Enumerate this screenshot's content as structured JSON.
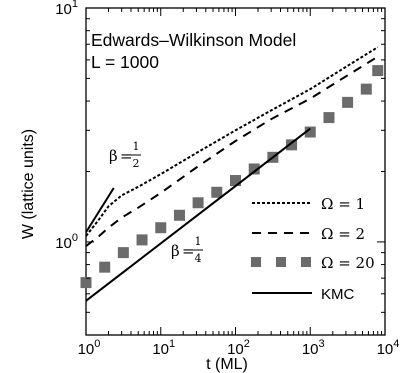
{
  "chart_data": {
    "type": "line",
    "xscale": "log",
    "yscale": "log",
    "xlim": [
      1,
      10000
    ],
    "ylim": [
      0.4,
      10
    ],
    "title": "Edwards–Wilkinson Model",
    "subtitle": "L = 1000",
    "xlabel": "t (ML)",
    "ylabel": "W (lattice units)",
    "grid": false,
    "legend_position": "right",
    "x_ticks": [
      {
        "value": 1,
        "base": "10",
        "exp": "0"
      },
      {
        "value": 10,
        "base": "10",
        "exp": "1"
      },
      {
        "value": 100,
        "base": "10",
        "exp": "2"
      },
      {
        "value": 1000,
        "base": "10",
        "exp": "3"
      },
      {
        "value": 10000,
        "base": "10",
        "exp": "4"
      }
    ],
    "y_ticks": [
      {
        "value": 1,
        "base": "10",
        "exp": "0"
      },
      {
        "value": 10,
        "base": "10",
        "exp": "1"
      }
    ],
    "series": [
      {
        "name": "Ω = 1",
        "style": "dotted",
        "x": [
          1,
          1.5,
          2,
          3,
          5,
          10,
          30,
          100,
          300,
          1000,
          3000,
          8000
        ],
        "y": [
          1.06,
          1.25,
          1.42,
          1.58,
          1.72,
          1.95,
          2.4,
          3.0,
          3.65,
          4.5,
          5.6,
          6.8
        ]
      },
      {
        "name": "Ω = 2",
        "style": "dashed",
        "x": [
          1,
          1.5,
          2,
          3,
          5,
          10,
          30,
          100,
          300,
          1000,
          3000,
          8000
        ],
        "y": [
          0.96,
          1.06,
          1.15,
          1.27,
          1.4,
          1.62,
          2.08,
          2.7,
          3.35,
          4.1,
          5.1,
          6.2
        ]
      },
      {
        "name": "Ω = 20",
        "style": "squares",
        "x": [
          1,
          1.78,
          3.16,
          5.62,
          10,
          17.8,
          31.6,
          56.2,
          100,
          178,
          316,
          562,
          1000,
          1780,
          3160,
          5620,
          8000
        ],
        "y": [
          0.67,
          0.78,
          0.9,
          1.02,
          1.15,
          1.3,
          1.47,
          1.63,
          1.83,
          2.05,
          2.3,
          2.6,
          2.95,
          3.4,
          3.95,
          4.5,
          5.4
        ]
      },
      {
        "name": "KMC",
        "style": "solid",
        "x": [
          1,
          1000
        ],
        "y": [
          0.56,
          3.05
        ]
      }
    ],
    "annotations": [
      {
        "id": "beta_half",
        "symbol": "β",
        "eq": "=",
        "num": "1",
        "den": "2",
        "line_x": [
          1,
          2.35
        ],
        "line_y": [
          1.1,
          1.7
        ]
      },
      {
        "id": "beta_quarter",
        "symbol": "β",
        "eq": "=",
        "num": "1",
        "den": "4"
      }
    ]
  }
}
